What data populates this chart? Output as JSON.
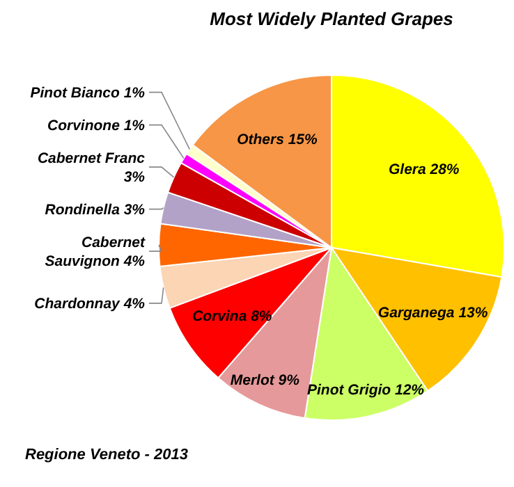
{
  "chart_data": {
    "type": "pie",
    "title": "Most Widely Planted Grapes",
    "categories": [
      "Glera",
      "Garganega",
      "Pinot Grigio",
      "Merlot",
      "Corvina",
      "Chardonnay",
      "Cabernet Sauvignon",
      "Rondinella",
      "Cabernet Franc",
      "Corvinone",
      "Pinot Bianco",
      "Others"
    ],
    "values": [
      28,
      13,
      12,
      9,
      8,
      4,
      4,
      3,
      3,
      1,
      1,
      15
    ],
    "value_labels": [
      "28%",
      "13%",
      "12%",
      "9%",
      "8%",
      "4%",
      "4%",
      "3%",
      "3%",
      "1%",
      "1%",
      "15%"
    ],
    "colors": [
      "#ffff00",
      "#ffc000",
      "#ccff66",
      "#e6999a",
      "#ff0000",
      "#fcd5b5",
      "#ff6600",
      "#b3a2c7",
      "#cc0000",
      "#ff00ff",
      "#ffffcc",
      "#f79646"
    ],
    "annotations": [
      "Regione Veneto - 2013"
    ]
  }
}
